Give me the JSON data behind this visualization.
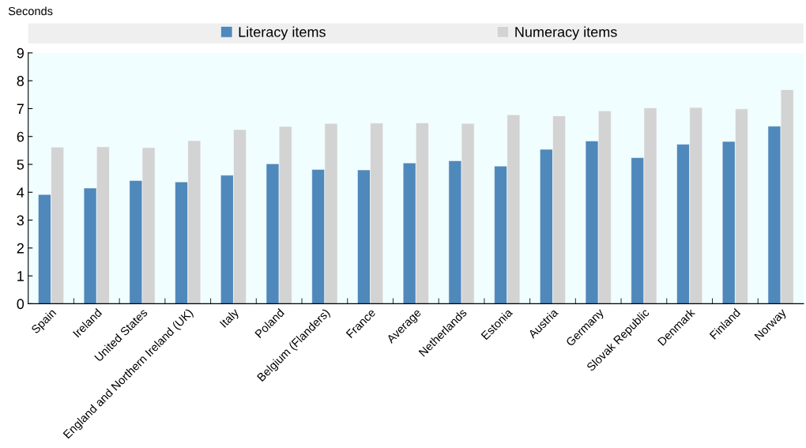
{
  "chart_data": {
    "type": "bar",
    "ylabel": "Seconds",
    "categories": [
      "Spain",
      "Ireland",
      "United States",
      "England and Northern Ireland (UK)",
      "Italy",
      "Poland",
      "Belgium (Flanders)",
      "France",
      "Average",
      "Netherlands",
      "Estonia",
      "Austria",
      "Germany",
      "Slovak Republic",
      "Denmark",
      "Finland",
      "Norway"
    ],
    "series": [
      {
        "name": "Literacy items",
        "color": "#4f88bb",
        "values": [
          3.92,
          4.15,
          4.42,
          4.37,
          4.61,
          5.02,
          4.82,
          4.8,
          5.05,
          5.13,
          4.94,
          5.54,
          5.84,
          5.24,
          5.72,
          5.82,
          6.37
        ]
      },
      {
        "name": "Numeracy items",
        "color": "#d3d3d3",
        "values": [
          5.62,
          5.63,
          5.6,
          5.85,
          6.25,
          6.36,
          6.47,
          6.48,
          6.49,
          6.47,
          6.78,
          6.74,
          6.92,
          7.03,
          7.04,
          6.99,
          7.68
        ]
      }
    ],
    "ylim": [
      0,
      9
    ],
    "yticks": [
      0,
      1,
      2,
      3,
      4,
      5,
      6,
      7,
      8,
      9
    ],
    "grid": false,
    "legend": "top"
  }
}
